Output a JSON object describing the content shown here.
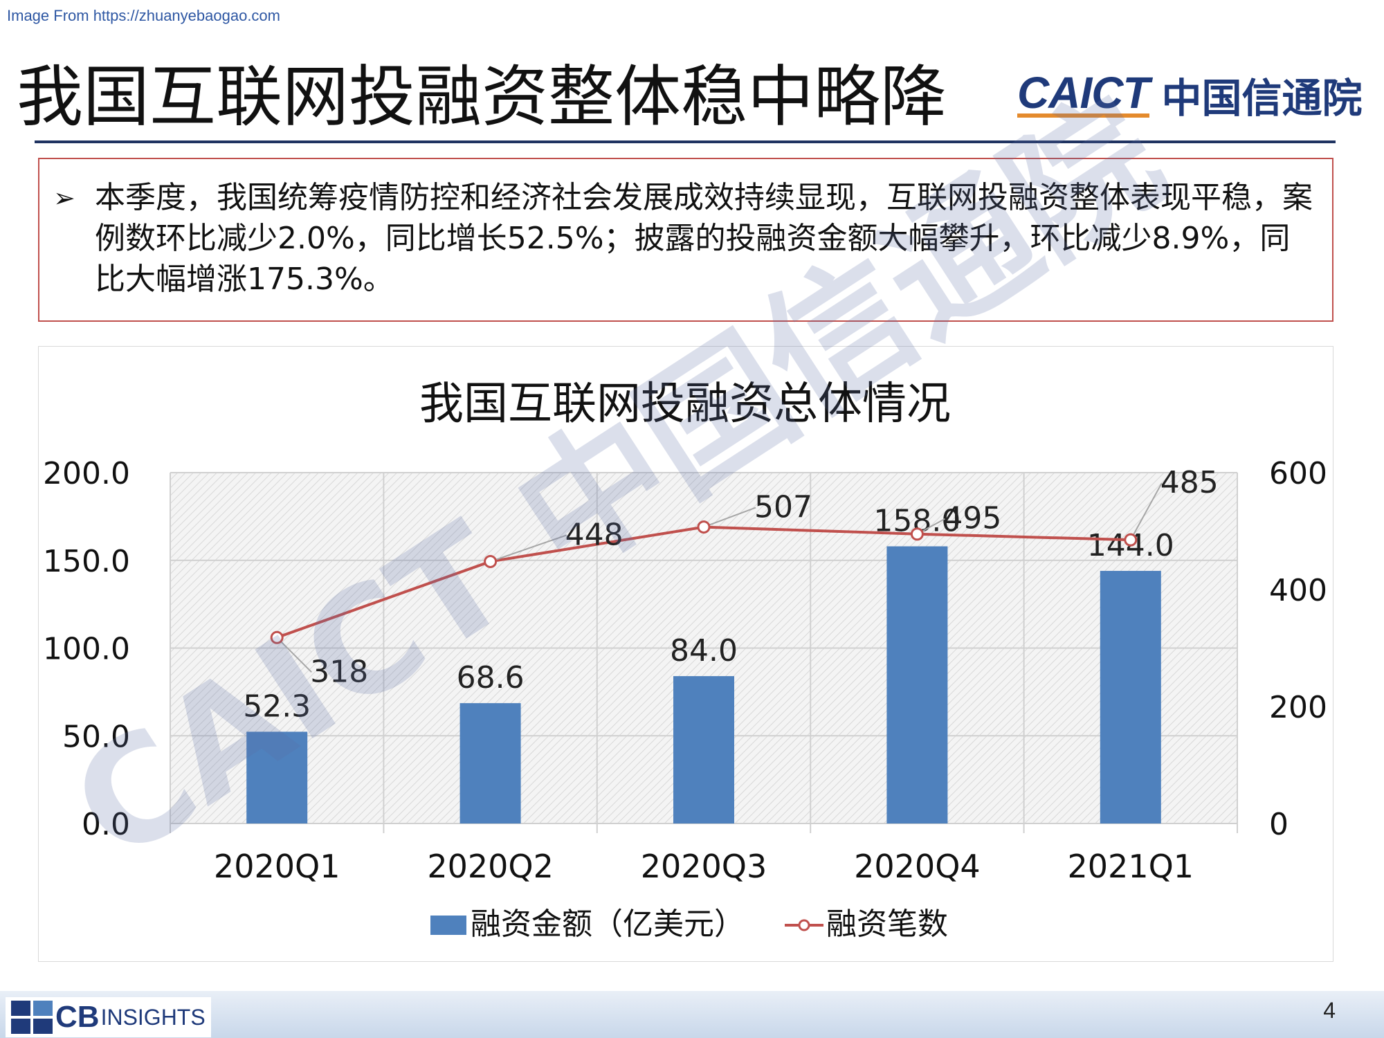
{
  "source_note": "Image From https://zhuanyebaogao.com",
  "header": {
    "title": "我国互联网投融资整体稳中略降",
    "logo_en": "CAICT",
    "logo_cn": "中国信通院"
  },
  "summary": {
    "bullet": "➢",
    "text": "本季度，我国统筹疫情防控和经济社会发展成效持续显现，互联网投融资整体表现平稳，案例数环比减少2.0%，同比增长52.5%；披露的投融资金额大幅攀升，环比减少8.9%，同比大幅增涨175.3%。"
  },
  "watermark": {
    "text": "CAICT 中国信通院"
  },
  "chart_data": {
    "type": "bar",
    "title": "我国互联网投融资总体情况",
    "categories": [
      "2020Q1",
      "2020Q2",
      "2020Q3",
      "2020Q4",
      "2021Q1"
    ],
    "series": [
      {
        "name": "融资金额（亿美元）",
        "type": "bar",
        "axis": "left",
        "values": [
          52.3,
          68.6,
          84.0,
          158.0,
          144.0
        ],
        "labels": [
          "52.3",
          "68.6",
          "84.0",
          "158.0",
          "144.0"
        ],
        "color": "#4f81bd"
      },
      {
        "name": "融资笔数",
        "type": "line",
        "axis": "right",
        "values": [
          318,
          448,
          507,
          495,
          485
        ],
        "labels": [
          "318",
          "448",
          "507",
          "495",
          "485"
        ],
        "color": "#c0504d"
      }
    ],
    "y_left": {
      "min": 0,
      "max": 200,
      "ticks": [
        "0.0",
        "50.0",
        "100.0",
        "150.0",
        "200.0"
      ],
      "tick_values": [
        0,
        50,
        100,
        150,
        200
      ]
    },
    "y_right": {
      "min": 0,
      "max": 600,
      "ticks": [
        "0",
        "200",
        "400",
        "600"
      ],
      "tick_values": [
        0,
        200,
        400,
        600
      ]
    },
    "grid": true,
    "legend_position": "bottom"
  },
  "footer": {
    "brand_cb": "CB",
    "brand_insights": "INSIGHTS",
    "page_number": "4"
  }
}
